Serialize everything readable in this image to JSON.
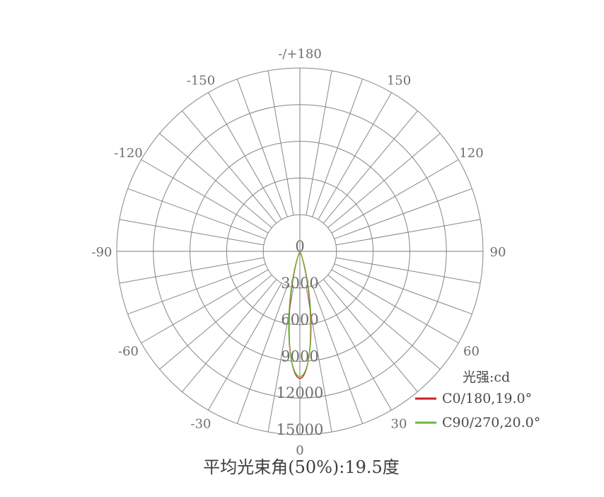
{
  "chart_data": {
    "type": "line",
    "variant": "polar-photometric-intensity",
    "caption": "平均光束角(50%):19.5度",
    "unit_label": "光强:cd",
    "angle_tick_step_deg": 10,
    "angle_label_step_deg": 30,
    "zero_direction": "down",
    "angle_labels": [
      {
        "angle_deg": 180,
        "label": "-/+180"
      },
      {
        "angle_deg": 150,
        "label": "150"
      },
      {
        "angle_deg": 120,
        "label": "120"
      },
      {
        "angle_deg": 90,
        "label": "90"
      },
      {
        "angle_deg": 60,
        "label": "60"
      },
      {
        "angle_deg": 30,
        "label": "30"
      },
      {
        "angle_deg": 0,
        "label": "0"
      },
      {
        "angle_deg": -30,
        "label": "-30"
      },
      {
        "angle_deg": -60,
        "label": "-60"
      },
      {
        "angle_deg": -90,
        "label": "-90"
      },
      {
        "angle_deg": -120,
        "label": "-120"
      },
      {
        "angle_deg": -150,
        "label": "-150"
      }
    ],
    "radial_axis": {
      "min": 0,
      "max": 15000,
      "ring_step": 3000,
      "ring_values": [
        3000,
        6000,
        9000,
        12000,
        15000
      ],
      "labels": [
        "0",
        "3000",
        "6000",
        "9000",
        "12000",
        "15000"
      ]
    },
    "series": [
      {
        "name": "C0/180,19.0°",
        "plane": "C0/180",
        "beam_angle_50pct_deg": 19.0,
        "peak_cd": 10400,
        "color": "#cc2127"
      },
      {
        "name": "C90/270,20.0°",
        "plane": "C90/270",
        "beam_angle_50pct_deg": 20.0,
        "peak_cd": 10250,
        "color": "#6db73a"
      }
    ],
    "colors": {
      "grid": "#868686",
      "axis": "#7e7e7e",
      "labels": "#6f6f6f",
      "legend_text": "#4a4a4a",
      "caption": "#3e3e3e"
    }
  }
}
